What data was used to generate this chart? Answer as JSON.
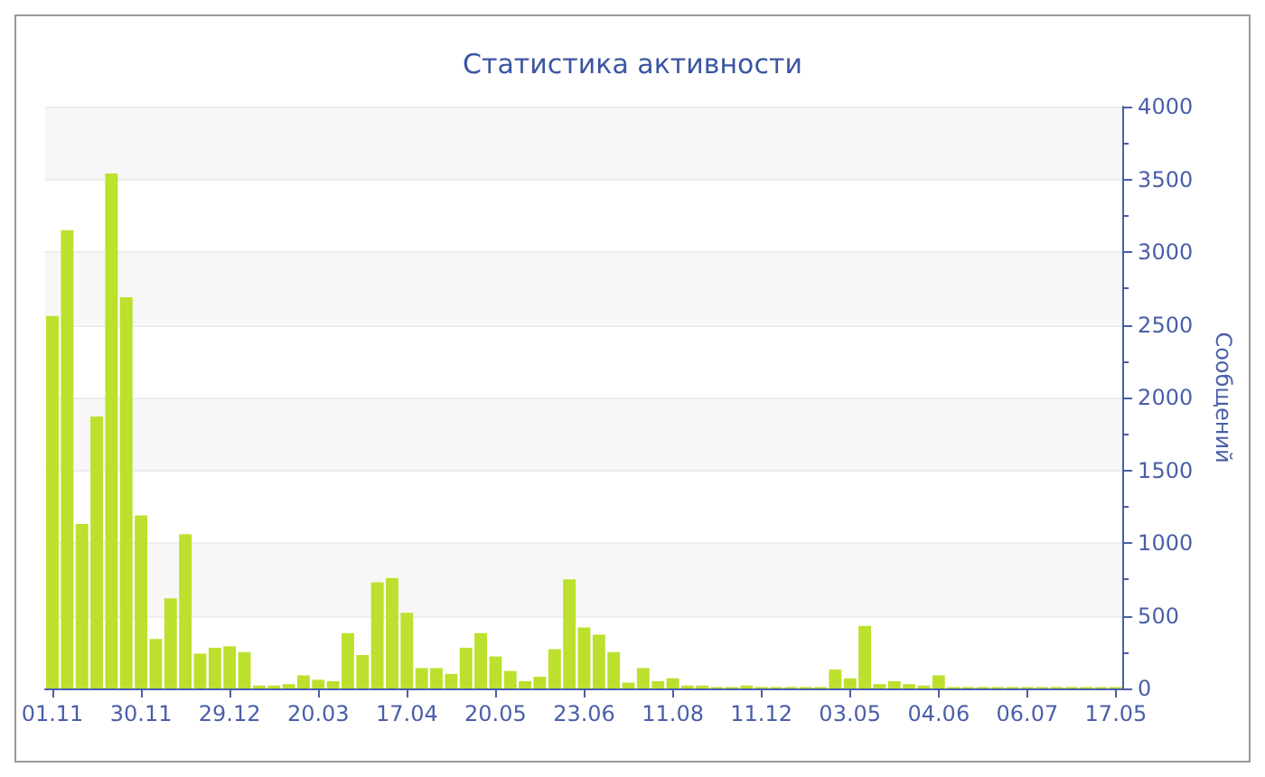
{
  "chart_data": {
    "type": "bar",
    "title": "Статистика активности",
    "ylabel": "Сообщений",
    "categories": [
      "01.11",
      null,
      null,
      null,
      null,
      null,
      "30.11",
      null,
      null,
      null,
      null,
      null,
      "29.12",
      null,
      null,
      null,
      null,
      null,
      "20.03",
      null,
      null,
      null,
      null,
      null,
      "17.04",
      null,
      null,
      null,
      null,
      null,
      "20.05",
      null,
      null,
      null,
      null,
      null,
      "23.06",
      null,
      null,
      null,
      null,
      null,
      "11.08",
      null,
      null,
      null,
      null,
      null,
      "11.12",
      null,
      null,
      null,
      null,
      null,
      "03.05",
      null,
      null,
      null,
      null,
      null,
      "04.06",
      null,
      null,
      null,
      null,
      null,
      "06.07",
      null,
      null,
      null,
      null,
      null,
      "17.05"
    ],
    "values": [
      2560,
      3150,
      1130,
      1870,
      3540,
      2690,
      1190,
      340,
      620,
      1060,
      240,
      280,
      290,
      250,
      20,
      20,
      30,
      90,
      60,
      50,
      380,
      230,
      730,
      760,
      520,
      140,
      140,
      100,
      280,
      380,
      220,
      120,
      50,
      80,
      270,
      750,
      420,
      370,
      250,
      40,
      140,
      50,
      70,
      20,
      20,
      10,
      10,
      20,
      10,
      10,
      10,
      10,
      10,
      130,
      70,
      430,
      30,
      50,
      30,
      20,
      90,
      10,
      10,
      10,
      10,
      10,
      10,
      10,
      10,
      10,
      10,
      10,
      10
    ],
    "color": "#bce02e",
    "ylim": [
      0,
      4000
    ],
    "yticks": [
      0,
      500,
      1000,
      1500,
      2000,
      2500,
      3000,
      3500,
      4000
    ],
    "grid": "y"
  }
}
